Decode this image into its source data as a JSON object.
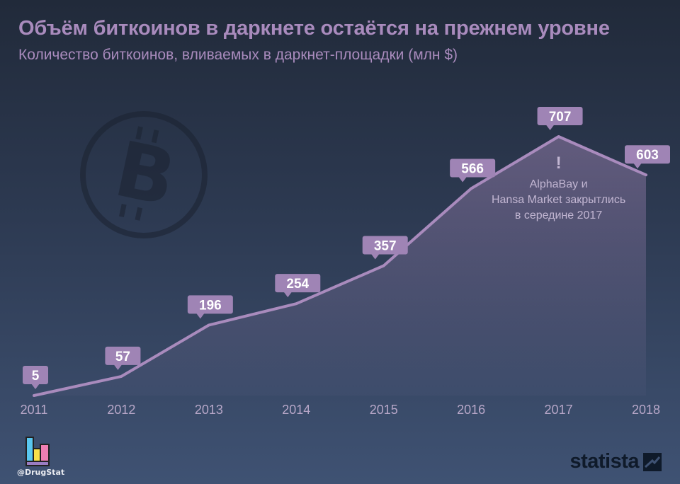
{
  "header": {
    "title": "Объём биткоинов в даркнете остаётся на прежнем уровне",
    "subtitle": "Количество биткоинов, вливаемых в даркнет-площадки (млн $)"
  },
  "chart_data": {
    "type": "area",
    "categories": [
      "2011",
      "2012",
      "2013",
      "2014",
      "2015",
      "2016",
      "2017",
      "2018"
    ],
    "values": [
      5,
      57,
      196,
      254,
      357,
      566,
      707,
      603
    ],
    "data_labels": [
      "5",
      "57",
      "196",
      "254",
      "357",
      "566",
      "707",
      "603"
    ],
    "annotation": {
      "category": "2017",
      "marker": "!",
      "lines": [
        "AlphaBay и",
        "Hansa Market закрытлись",
        "в середине 2017"
      ]
    },
    "grid": false,
    "legend": "none",
    "colors": {
      "line": "#a98bbd",
      "label_bg": "#9f84b5",
      "label_text": "#ffffff",
      "axis_text": "#b7a7c8",
      "annotation_text": "#c2b6d2"
    }
  },
  "background_icon": "bitcoin-icon",
  "footer": {
    "handle": "@DrugStat",
    "brand": "statista",
    "brand_icon": "statista-logo-icon"
  }
}
